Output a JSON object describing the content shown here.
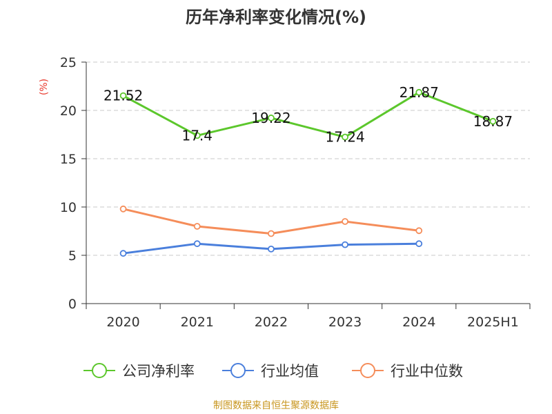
{
  "chart_data": {
    "type": "line",
    "title": "历年净利率变化情况(%)",
    "ylabel": "(%)",
    "categories": [
      "2020",
      "2021",
      "2022",
      "2023",
      "2024",
      "2025H1"
    ],
    "ylim": [
      0,
      25
    ],
    "yticks": [
      0,
      5,
      10,
      15,
      20,
      25
    ],
    "grid": true,
    "legend_position": "bottom",
    "series": [
      {
        "name": "公司净利率",
        "color": "#5cc72c",
        "values": [
          21.52,
          17.4,
          19.22,
          17.24,
          21.87,
          18.87
        ],
        "labels": [
          "21.52",
          "17.4",
          "19.22",
          "17.24",
          "21.87",
          "18.87"
        ]
      },
      {
        "name": "行业均值",
        "color": "#4a7fdc",
        "values": [
          5.2,
          6.2,
          5.65,
          6.1,
          6.2,
          null
        ]
      },
      {
        "name": "行业中位数",
        "color": "#f58d5a",
        "values": [
          9.8,
          8.0,
          7.25,
          8.5,
          7.55,
          null
        ]
      }
    ]
  },
  "source": "制图数据来自恒生聚源数据库"
}
